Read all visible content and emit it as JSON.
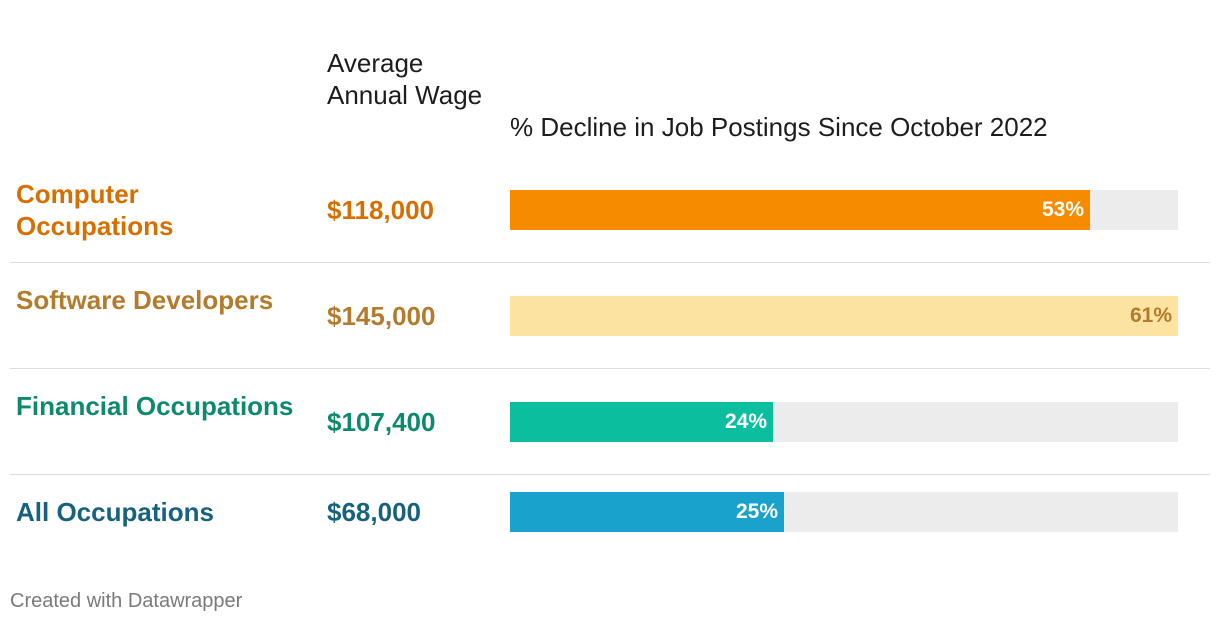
{
  "header": {
    "wage_column": "Average Annual Wage",
    "bar_column": "% Decline in Job Postings Since October 2022"
  },
  "chart_data": {
    "type": "bar",
    "orientation": "horizontal",
    "title": "",
    "categories": [
      "Computer Occupations",
      "Software Developers",
      "Financial Occupations",
      "All Occupations"
    ],
    "series": [
      {
        "name": "% Decline in Job Postings Since October 2022",
        "values": [
          53,
          61,
          24,
          25
        ]
      }
    ],
    "value_labels": [
      "53%",
      "61%",
      "24%",
      "25%"
    ],
    "wages": [
      "$118,000",
      "$145,000",
      "$107,400",
      "$68,000"
    ],
    "xlim": [
      0,
      61
    ],
    "grid": false,
    "colors": {
      "bars": [
        "#f68b00",
        "#fde3a1",
        "#0bbf9e",
        "#18a2cc"
      ],
      "labels": [
        "#d57000",
        "#b37b2b",
        "#0d8a6e",
        "#17627e"
      ],
      "value_text": [
        "#ffffff",
        "#b37b2b",
        "#ffffff",
        "#ffffff"
      ],
      "track": "#ececec"
    }
  },
  "footer": {
    "credit": "Created with Datawrapper"
  }
}
